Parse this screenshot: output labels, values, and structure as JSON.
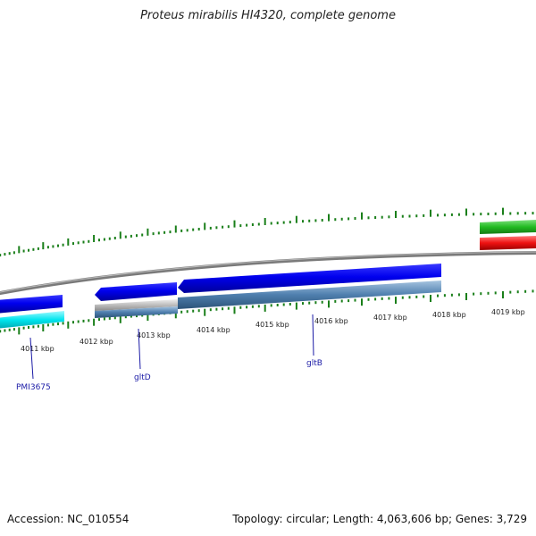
{
  "title": "Proteus mirabilis HI4320, complete genome",
  "footer": {
    "accession": "Accession: NC_010554",
    "topology": "Topology: circular; Length: 4,063,606 bp; Genes: 3,729"
  },
  "colors": {
    "backbone": "#808080",
    "forward_cds": "#0000ee",
    "reverse_cds": "#4f7fae",
    "cyan_feature": "#00e5ee",
    "grey_feature": "#bdbdbd",
    "green_feature": "#22bb22",
    "red_feature": "#ee1111",
    "ticks": "#1a7f1a",
    "label_line": "#1a1aa6"
  },
  "scale": {
    "ticks": [
      {
        "label": "4011 kbp",
        "kbp": 4011
      },
      {
        "label": "4012 kbp",
        "kbp": 4012
      },
      {
        "label": "4013 kbp",
        "kbp": 4013
      },
      {
        "label": "4014 kbp",
        "kbp": 4014
      },
      {
        "label": "4015 kbp",
        "kbp": 4015
      },
      {
        "label": "4016 kbp",
        "kbp": 4016
      },
      {
        "label": "4017 kbp",
        "kbp": 4017
      },
      {
        "label": "4018 kbp",
        "kbp": 4018
      },
      {
        "label": "4019 kbp",
        "kbp": 4019
      }
    ]
  },
  "genes": [
    {
      "name": "PMI3675",
      "icon": "cyan-gene-feature"
    },
    {
      "name": "gltD",
      "icon": "blue-gene-arrow"
    },
    {
      "name": "gltB",
      "icon": "blue-gene-arrow"
    }
  ]
}
